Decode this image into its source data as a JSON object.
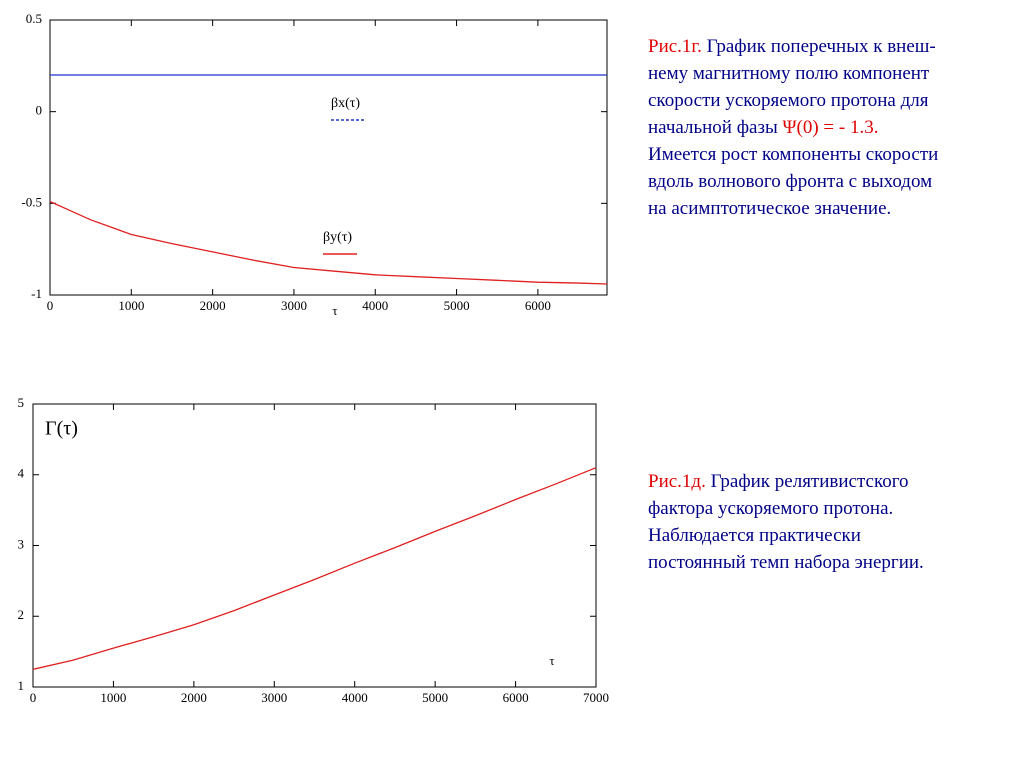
{
  "chart_data": [
    {
      "type": "line",
      "x": [
        0,
        250,
        500,
        750,
        1000,
        1500,
        2000,
        2500,
        3000,
        3500,
        4000,
        4500,
        5000,
        5500,
        6000,
        6500,
        6850
      ],
      "xlim": [
        0,
        6850
      ],
      "xticks": [
        0,
        1000,
        2000,
        3000,
        4000,
        5000,
        6000
      ],
      "ylim": [
        -1,
        0.5
      ],
      "yticks": [
        -1,
        -0.5,
        0,
        0.5
      ],
      "x_label": "τ",
      "series": [
        {
          "name": "βx(τ)",
          "color": "#2233cc",
          "legend_dash": true,
          "values": [
            0.2,
            0.2,
            0.2,
            0.2,
            0.2,
            0.2,
            0.2,
            0.2,
            0.2,
            0.2,
            0.2,
            0.2,
            0.2,
            0.2,
            0.2,
            0.2,
            0.2
          ]
        },
        {
          "name": "βy(τ)",
          "color": "#e02020",
          "legend_dash": false,
          "values": [
            -0.49,
            -0.54,
            -0.59,
            -0.63,
            -0.67,
            -0.72,
            -0.765,
            -0.81,
            -0.85,
            -0.87,
            -0.89,
            -0.9,
            -0.91,
            -0.92,
            -0.93,
            -0.935,
            -0.94
          ]
        }
      ]
    },
    {
      "type": "line",
      "x": [
        0,
        500,
        1000,
        1500,
        2000,
        2500,
        3000,
        3500,
        4000,
        4500,
        5000,
        5500,
        6000,
        6500,
        7000
      ],
      "xlim": [
        0,
        7000
      ],
      "xticks": [
        0,
        1000,
        2000,
        3000,
        4000,
        5000,
        6000,
        7000
      ],
      "ylim": [
        1,
        5
      ],
      "yticks": [
        1,
        2,
        3,
        4,
        5
      ],
      "x_label": "τ",
      "series": [
        {
          "name": "Γ(τ)",
          "color": "#e02020",
          "legend_dash": false,
          "values": [
            1.25,
            1.38,
            1.55,
            1.71,
            1.88,
            2.08,
            2.3,
            2.52,
            2.75,
            2.97,
            3.2,
            3.42,
            3.65,
            3.87,
            4.1
          ]
        }
      ]
    }
  ],
  "captions": [
    {
      "label": "Рис.1г.",
      "lines": [
        " График поперечных к внеш-",
        "нему магнитному полю компонент",
        "скорости ускоряемого протона для",
        "начальной фазы "
      ],
      "highlight": "Ψ(0) = - 1.3.",
      "tail": [
        "Имеется рост компоненты скорости",
        "вдоль волнового фронта с выходом",
        "на асимптотическое значение."
      ]
    },
    {
      "label": "Рис.1д.",
      "lines": [
        " График релятивистского",
        "фактора ускоряемого протона.",
        "Наблюдается практически",
        "постоянный темп набора энергии."
      ]
    }
  ]
}
